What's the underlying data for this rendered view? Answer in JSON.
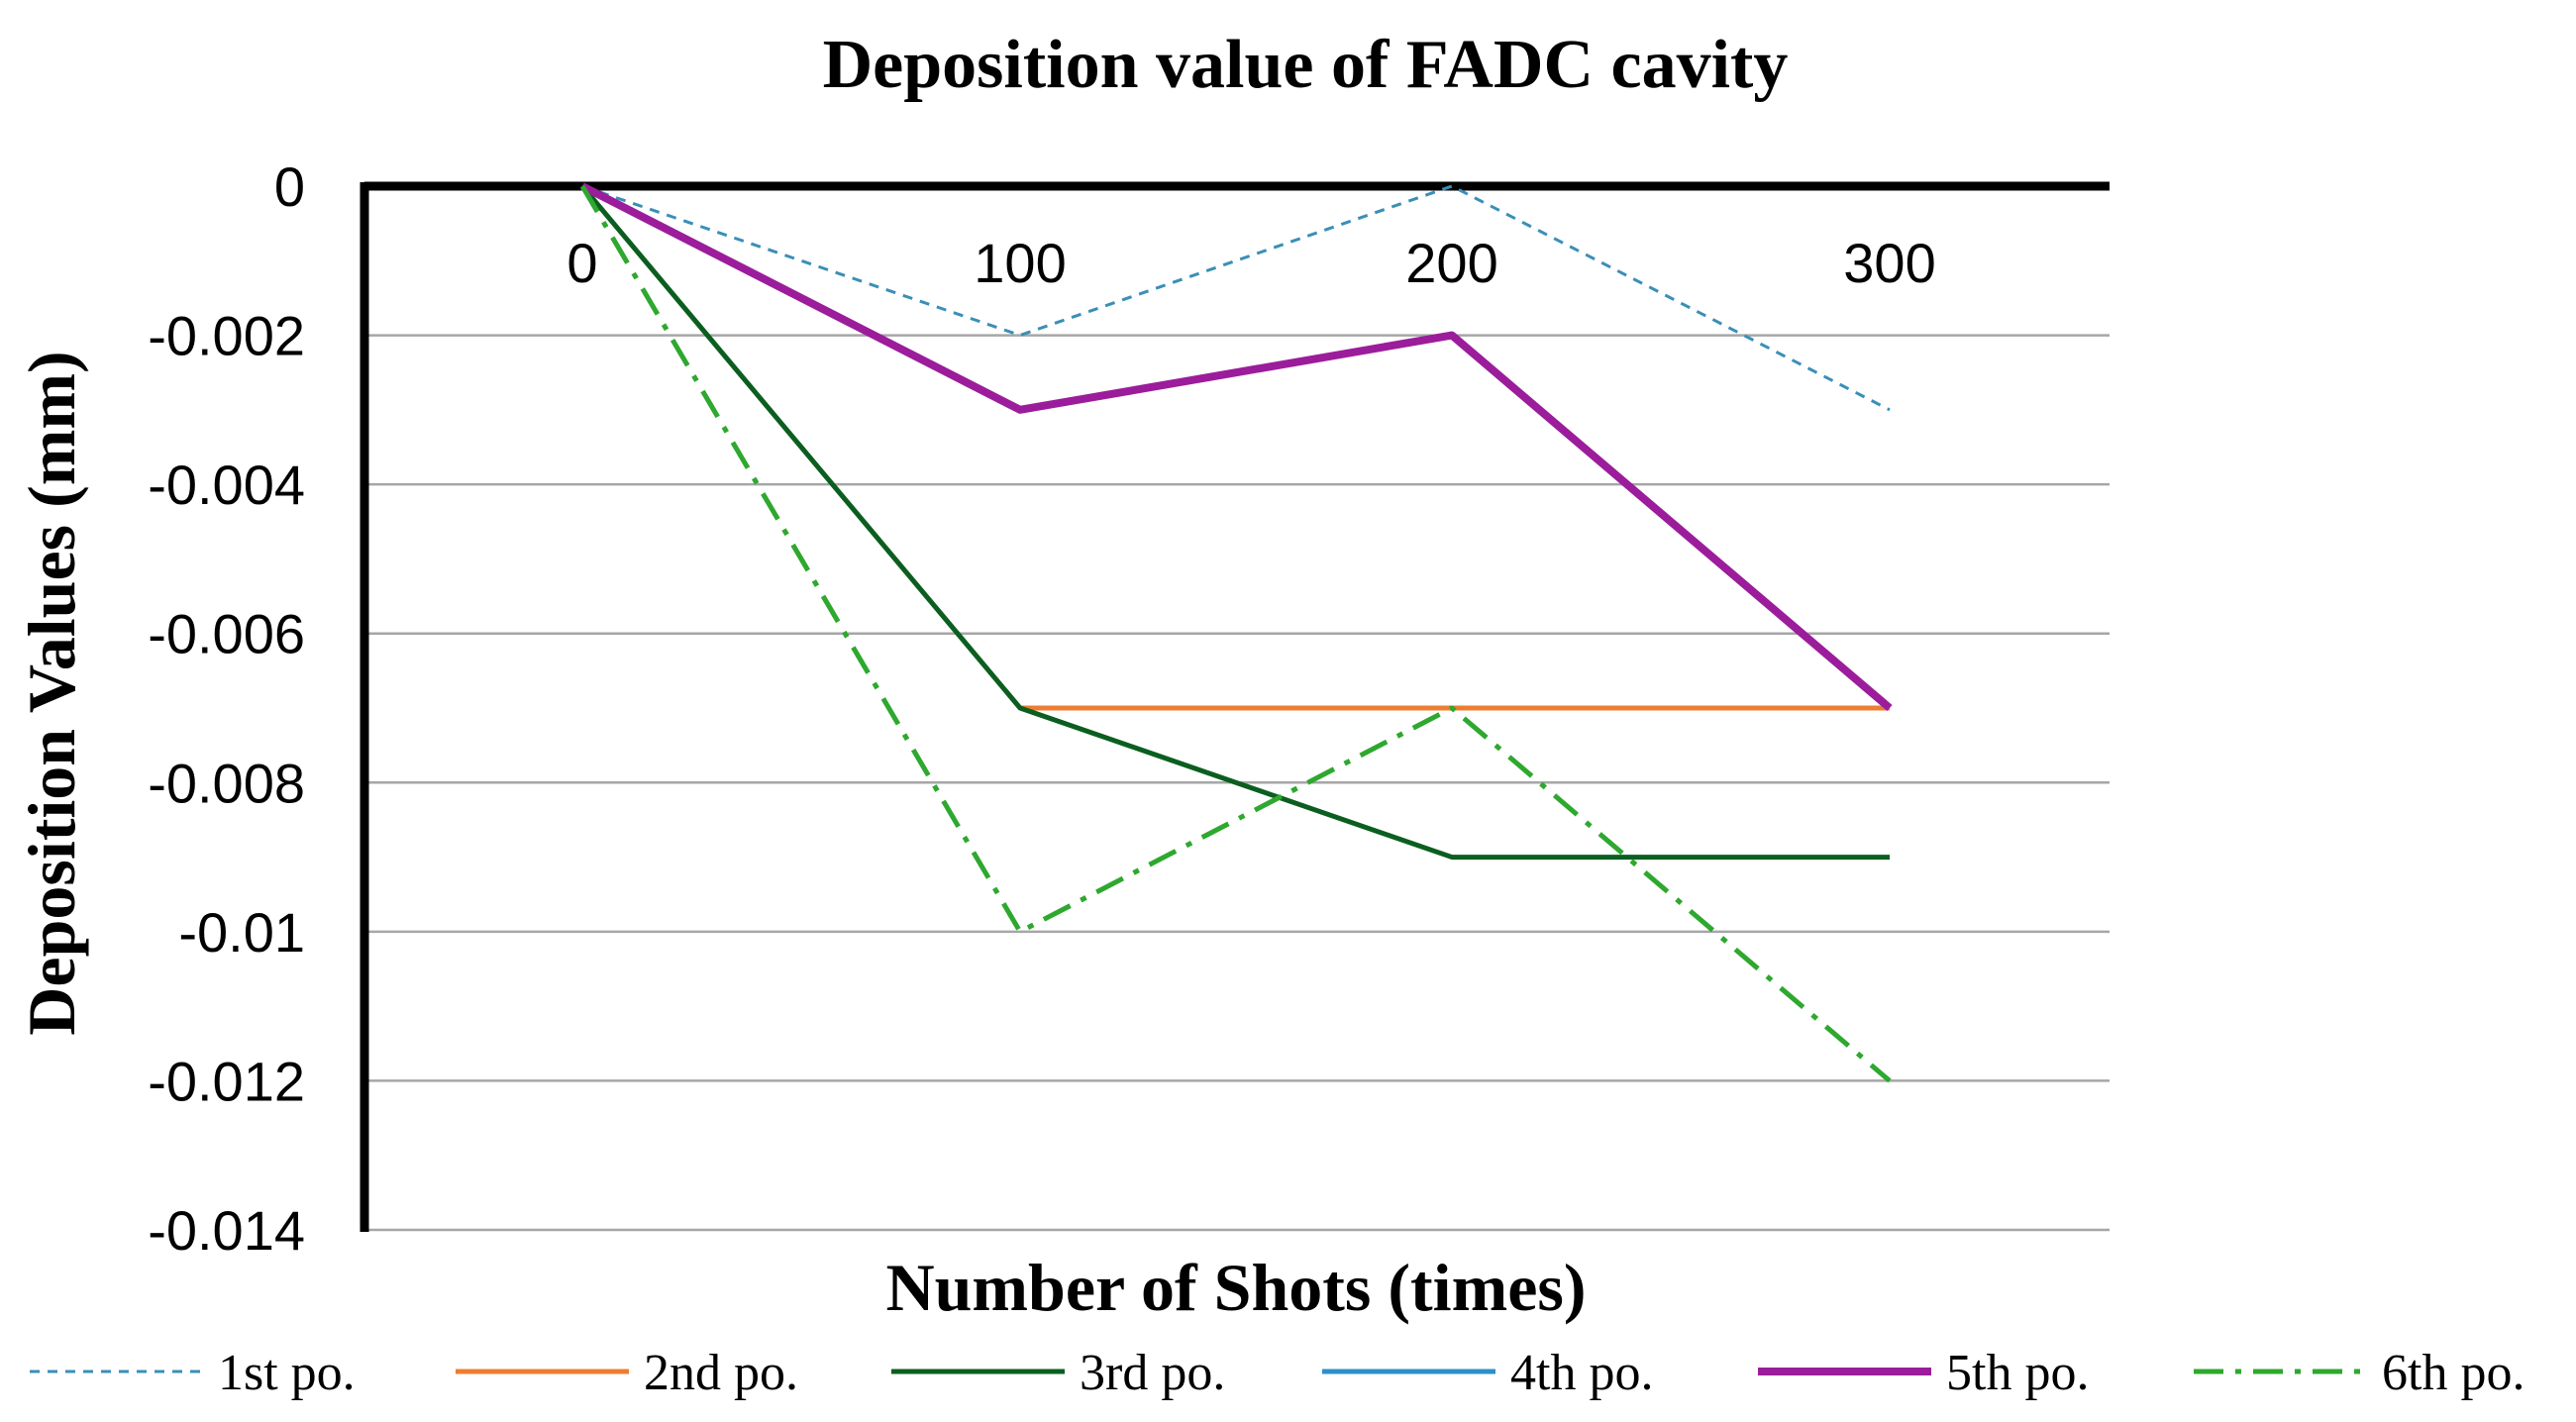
{
  "chart_data": {
    "type": "line",
    "title": "Deposition value of FADC cavity",
    "xlabel": "Number of Shots (times)",
    "ylabel": "Deposition Values (mm)",
    "categories": [
      "0",
      "100",
      "200",
      "300"
    ],
    "ylim": [
      -0.014,
      0
    ],
    "yticks": [
      0,
      -0.002,
      -0.004,
      -0.006,
      -0.008,
      -0.01,
      -0.012,
      -0.014
    ],
    "ytick_labels": [
      "0",
      "-0.002",
      "-0.004",
      "-0.006",
      "-0.008",
      "-0.01",
      "-0.012",
      "-0.014"
    ],
    "grid": true,
    "legend_position": "bottom",
    "series": [
      {
        "name": "1st po.",
        "values": [
          0,
          -0.002,
          0,
          -0.003
        ],
        "color": "#3a8fb7",
        "dash": "dashed",
        "weight": "thin"
      },
      {
        "name": "2nd po.",
        "values": [
          null,
          -0.007,
          -0.007,
          -0.007
        ],
        "color": "#ed7d31",
        "dash": "solid",
        "weight": "normal"
      },
      {
        "name": "3rd po.",
        "values": [
          0,
          -0.007,
          -0.009,
          -0.009
        ],
        "color": "#0b5e1f",
        "dash": "solid",
        "weight": "normal"
      },
      {
        "name": "4th po.",
        "values": [
          null,
          null,
          null,
          null
        ],
        "color": "#2e8fc9",
        "dash": "solid",
        "weight": "normal"
      },
      {
        "name": "5th po.",
        "values": [
          0,
          -0.003,
          -0.002,
          -0.007
        ],
        "color": "#9b1d9b",
        "dash": "solid",
        "weight": "thick"
      },
      {
        "name": "6th po.",
        "values": [
          0,
          -0.01,
          -0.007,
          -0.012
        ],
        "color": "#2ea82e",
        "dash": "dashdot",
        "weight": "normal"
      }
    ]
  }
}
